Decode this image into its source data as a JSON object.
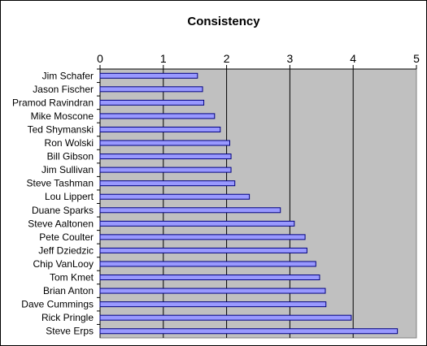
{
  "chart_data": {
    "type": "bar",
    "orientation": "horizontal",
    "title": "Consistency",
    "xlabel": "",
    "ylabel": "",
    "xlim": [
      0,
      5
    ],
    "x_ticks": [
      "0",
      "1",
      "2",
      "3",
      "4",
      "5"
    ],
    "x_axis_position": "top",
    "grid": "vertical major gridlines",
    "legend": "none",
    "categories": [
      "Jim Schafer",
      "Jason Fischer",
      "Pramod Ravindran",
      "Mike Moscone",
      "Ted Shymanski",
      "Ron Wolski",
      "Bill Gibson",
      "Jim Sullivan",
      "Steve Tashman",
      "Lou Lippert",
      "Duane Sparks",
      "Steve Aaltonen",
      "Pete Coulter",
      "Jeff Dziedzic",
      "Chip VanLooy",
      "Tom Kmet",
      "Brian Anton",
      "Dave Cummings",
      "Rick Pringle",
      "Steve Erps"
    ],
    "values": [
      1.54,
      1.62,
      1.64,
      1.81,
      1.9,
      2.05,
      2.07,
      2.07,
      2.13,
      2.36,
      2.85,
      3.07,
      3.24,
      3.27,
      3.41,
      3.47,
      3.56,
      3.57,
      3.97,
      4.7
    ]
  },
  "colors": {
    "plot_background": "#c0c0c0",
    "bar_fill": "#9999ff",
    "bar_stroke": "#000080",
    "gridline": "#000000",
    "frame_background": "#ffffff"
  }
}
